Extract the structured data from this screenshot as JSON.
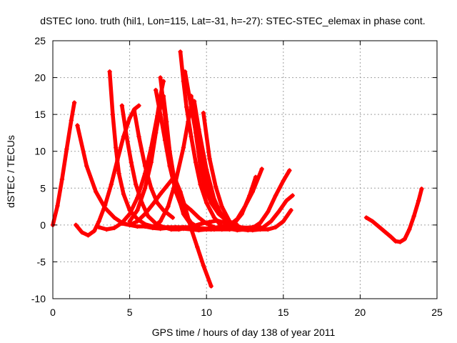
{
  "chart_data": {
    "type": "scatter",
    "title": "dSTEC Iono. truth (hil1, Lon=115, Lat=-31, h=-27): STEC-STEC_elemax in phase cont.",
    "xlabel": "GPS time / hours of day 138 of year 2011",
    "ylabel": "dSTEC  / TECUs",
    "xlim": [
      0,
      25
    ],
    "ylim": [
      -10,
      25
    ],
    "xticks": [
      0,
      5,
      10,
      15,
      20,
      25
    ],
    "yticks": [
      -10,
      -5,
      0,
      5,
      10,
      15,
      20,
      25
    ],
    "grid": true,
    "legend": "none",
    "marker": "plus",
    "color": "#ff0000",
    "series": [
      {
        "x": [
          0.0,
          0.3,
          0.6,
          0.9,
          1.2,
          1.4
        ],
        "y": [
          0.0,
          2.6,
          6.2,
          10.3,
          14.2,
          16.6
        ]
      },
      {
        "x": [
          1.6,
          2.2,
          2.8,
          3.4,
          4.0,
          4.5,
          5.0,
          5.5,
          6.0,
          6.5,
          7.0,
          7.5,
          8.0,
          8.5,
          9.0,
          9.5,
          10.0,
          10.3
        ],
        "y": [
          13.5,
          8.0,
          4.5,
          2.3,
          1.0,
          0.3,
          0.0,
          -0.2,
          -0.2,
          -0.4,
          -0.5,
          -0.4,
          -0.4,
          -0.5,
          -0.6,
          -0.7,
          -0.6,
          -0.6
        ]
      },
      {
        "x": [
          1.5,
          1.9,
          2.3,
          2.7,
          3.0,
          3.4,
          3.8,
          4.2,
          4.6,
          5.0,
          5.3,
          5.6
        ],
        "y": [
          0.0,
          -1.0,
          -1.4,
          -0.8,
          0.5,
          2.7,
          5.5,
          8.8,
          12.0,
          14.5,
          15.7,
          16.2
        ]
      },
      {
        "x": [
          3.7,
          3.9,
          4.1,
          4.3,
          4.6,
          5.0,
          5.5,
          6.0,
          6.5,
          7.0,
          7.5,
          8.0,
          8.5,
          9.0
        ],
        "y": [
          20.8,
          15.0,
          10.5,
          7.0,
          4.2,
          2.0,
          0.8,
          0.1,
          -0.2,
          -0.3,
          -0.3,
          -0.3,
          -0.3,
          -0.3
        ]
      },
      {
        "x": [
          3.0,
          3.5,
          4.0,
          4.5,
          5.0,
          5.5,
          6.0,
          6.4,
          6.8,
          7.0,
          7.2
        ],
        "y": [
          -0.3,
          -0.6,
          -0.4,
          0.3,
          1.5,
          3.7,
          7.0,
          10.5,
          14.8,
          17.5,
          19.5
        ]
      },
      {
        "x": [
          4.5,
          4.8,
          5.1,
          5.4,
          5.8,
          6.2,
          6.7,
          7.2,
          7.7,
          8.2,
          8.7,
          9.2,
          9.7,
          10.2,
          10.7,
          11.2,
          11.7,
          12.2,
          12.7
        ],
        "y": [
          16.2,
          12.0,
          8.5,
          5.5,
          3.0,
          1.2,
          0.2,
          -0.3,
          -0.6,
          -0.6,
          -0.4,
          -0.1,
          0.2,
          0.4,
          0.6,
          0.3,
          0.0,
          -0.3,
          -0.4
        ]
      },
      {
        "x": [
          4.5,
          5.0,
          5.5,
          6.0,
          6.5,
          7.0,
          7.5,
          7.8,
          8.0,
          8.3,
          8.6,
          9.0,
          9.4,
          9.8,
          10.3
        ],
        "y": [
          0.2,
          0.0,
          0.5,
          1.5,
          2.8,
          4.2,
          5.5,
          6.3,
          6.0,
          4.5,
          2.5,
          -0.5,
          -3.0,
          -5.5,
          -8.3
        ]
      },
      {
        "x": [
          5.3,
          5.6,
          6.0,
          6.4,
          6.8,
          7.2,
          7.5,
          7.8
        ],
        "y": [
          15.5,
          12.0,
          8.0,
          5.0,
          3.0,
          2.0,
          1.5,
          1.0
        ]
      },
      {
        "x": [
          5.0,
          5.5,
          6.0,
          6.4,
          6.7,
          7.0,
          7.2,
          7.4,
          7.6,
          8.0,
          8.5,
          9.0,
          9.5,
          10.0,
          10.5,
          11.0,
          11.5,
          12.0
        ],
        "y": [
          0.5,
          2.0,
          5.0,
          8.5,
          12.5,
          16.0,
          17.5,
          14.0,
          10.0,
          5.0,
          1.5,
          0.0,
          -0.4,
          -0.5,
          -0.4,
          -0.2,
          -0.1,
          0.0
        ]
      },
      {
        "x": [
          6.7,
          7.0,
          7.3,
          7.6,
          8.0,
          8.5,
          9.0,
          9.5,
          10.0,
          10.5,
          11.0,
          11.5,
          12.0,
          12.5,
          13.0,
          13.5
        ],
        "y": [
          18.3,
          15.0,
          11.5,
          8.0,
          4.5,
          1.8,
          0.3,
          -0.4,
          -0.6,
          -0.6,
          -0.6,
          -0.6,
          -0.5,
          -0.4,
          -0.3,
          -0.3
        ]
      },
      {
        "x": [
          7.0,
          7.2,
          7.4,
          7.6,
          7.8,
          8.0,
          8.3,
          8.6,
          9.0,
          9.5,
          10.0,
          10.5,
          11.0,
          11.5,
          12.0
        ],
        "y": [
          20.0,
          16.5,
          13.0,
          10.0,
          7.0,
          5.0,
          3.5,
          2.7,
          2.0,
          1.0,
          0.2,
          -0.3,
          -0.5,
          -0.4,
          -0.2
        ]
      },
      {
        "x": [
          8.3,
          8.5,
          8.7,
          9.0,
          9.3,
          9.6,
          10.0,
          10.5,
          11.0,
          11.5,
          12.0,
          12.5,
          13.0,
          13.5,
          14.0,
          14.5,
          15.0,
          15.5
        ],
        "y": [
          23.5,
          19.5,
          16.0,
          12.0,
          8.5,
          5.5,
          3.0,
          1.0,
          -0.2,
          -0.5,
          -0.7,
          -0.6,
          -0.7,
          -0.6,
          -0.6,
          -0.3,
          0.5,
          2.0
        ]
      },
      {
        "x": [
          6.5,
          7.0,
          7.5,
          8.0,
          8.5,
          8.8,
          9.0,
          9.2,
          9.5,
          10.0,
          10.5,
          11.0,
          11.5,
          12.0,
          12.5,
          13.0,
          13.6
        ],
        "y": [
          -0.3,
          0.5,
          2.5,
          6.0,
          10.5,
          14.0,
          16.0,
          16.8,
          13.0,
          7.5,
          3.5,
          1.2,
          0.0,
          0.8,
          2.5,
          4.5,
          7.6
        ]
      },
      {
        "x": [
          8.6,
          9.0,
          9.4,
          9.8,
          10.2,
          10.7,
          11.2,
          11.7,
          12.2,
          12.7,
          13.2,
          13.7,
          14.2,
          14.7,
          15.2,
          15.6
        ],
        "y": [
          20.8,
          16.0,
          11.5,
          7.5,
          4.5,
          2.3,
          0.8,
          -0.2,
          -0.6,
          -0.7,
          -0.6,
          -0.3,
          0.5,
          1.8,
          3.3,
          4.0
        ]
      },
      {
        "x": [
          9.0,
          9.3,
          9.6,
          9.9,
          10.3,
          10.8,
          11.3,
          11.8,
          12.3,
          12.8,
          13.2
        ],
        "y": [
          17.5,
          12.5,
          8.0,
          5.0,
          3.0,
          1.5,
          0.6,
          0.2,
          1.5,
          4.0,
          6.5
        ]
      },
      {
        "x": [
          9.8,
          10.2,
          10.6,
          11.0,
          11.5,
          12.0,
          12.5,
          13.0,
          13.5,
          14.0,
          14.5,
          15.0,
          15.4
        ],
        "y": [
          15.2,
          9.0,
          5.2,
          2.5,
          0.5,
          -0.3,
          -0.5,
          -0.4,
          0.3,
          1.8,
          4.0,
          6.0,
          7.4
        ]
      },
      {
        "x": [
          20.4,
          20.8,
          21.2,
          21.6,
          22.0,
          22.3,
          22.6,
          22.9,
          23.2,
          23.5,
          23.8,
          24.0
        ],
        "y": [
          1.0,
          0.5,
          -0.2,
          -0.9,
          -1.6,
          -2.2,
          -2.3,
          -1.9,
          -0.6,
          1.2,
          3.3,
          4.9
        ]
      }
    ]
  }
}
